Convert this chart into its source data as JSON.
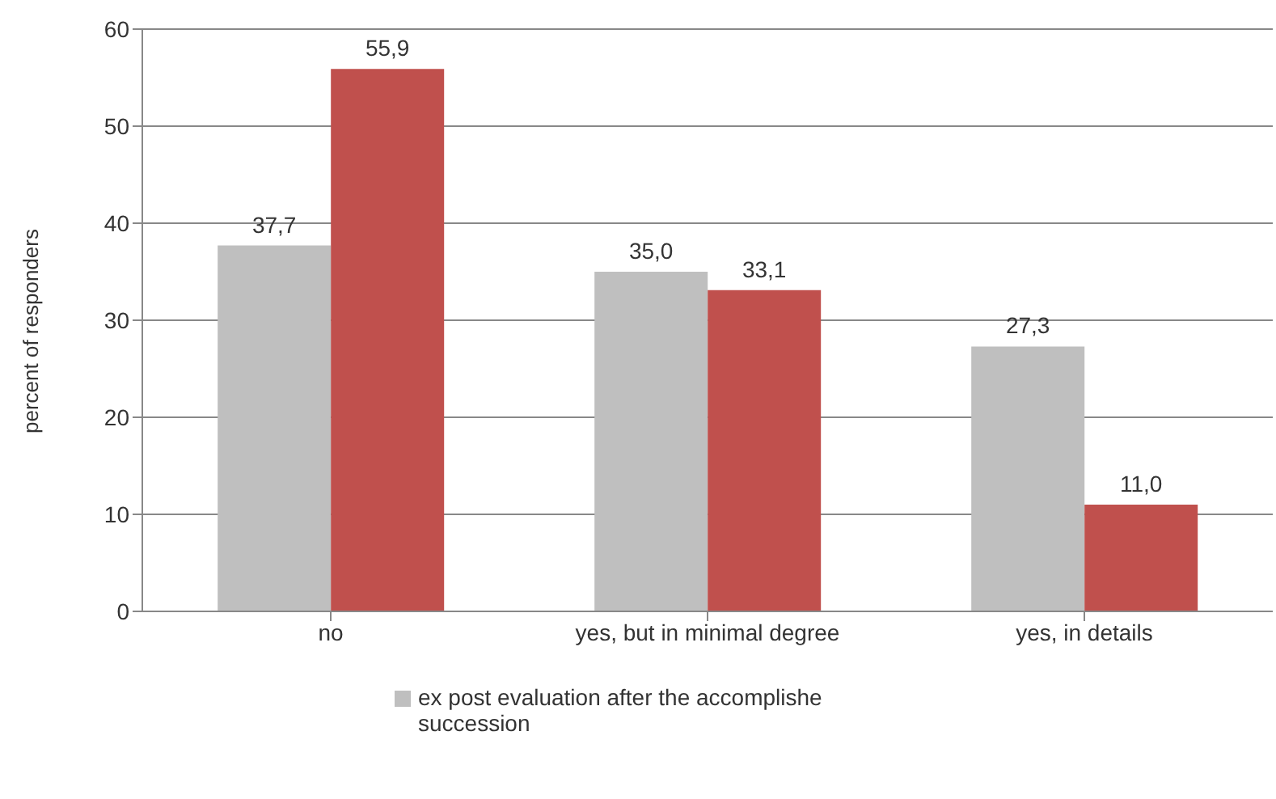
{
  "chart_data": {
    "type": "bar",
    "ylabel": "percent of responders",
    "categories": [
      "no",
      "yes, but in minimal degree",
      "yes, in details"
    ],
    "series": [
      {
        "name": "ex post evaluation after the accomplishe succession",
        "color": "#bfbfbf",
        "values": [
          37.7,
          35.0,
          27.3
        ],
        "value_labels": [
          "37,7",
          "35,0",
          "27,3"
        ]
      },
      {
        "color": "#c0504d",
        "values": [
          55.9,
          33.1,
          11.0
        ],
        "value_labels": [
          "55,9",
          "33,1",
          "11,0"
        ]
      }
    ],
    "ylim": [
      0,
      60
    ],
    "yticks": [
      0,
      10,
      20,
      30,
      40,
      50,
      60
    ],
    "grid": "y",
    "legend": "bottom"
  }
}
